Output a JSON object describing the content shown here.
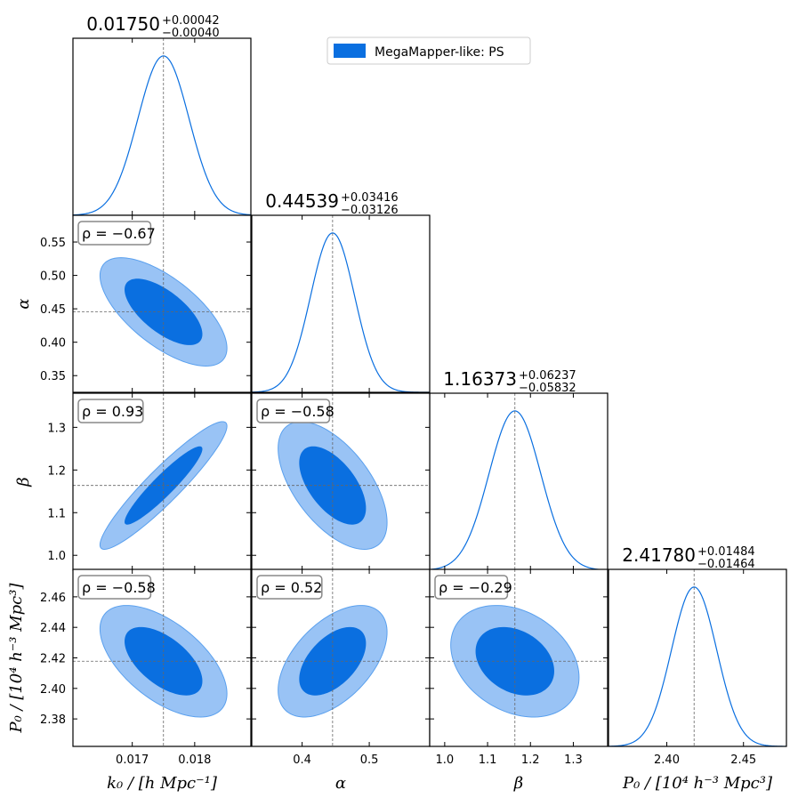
{
  "chart_data": {
    "type": "corner",
    "parameters": [
      {
        "name": "k0",
        "label": "k₀ / [h Mpc⁻¹]",
        "fiducial": 0.0175,
        "range": [
          0.01605,
          0.0189
        ],
        "ticks": [
          0.017,
          0.018
        ],
        "tick_labels": [
          "0.017",
          "0.018"
        ],
        "title_value": "0.01750",
        "title_plus": "+0.00042",
        "title_minus": "−0.00040"
      },
      {
        "name": "alpha",
        "label": "α",
        "fiducial": 0.44539,
        "range": [
          0.325,
          0.59
        ],
        "ticks": [
          0.35,
          0.4,
          0.45,
          0.5,
          0.55
        ],
        "tick_labels": [
          "0.35",
          "0.40",
          "0.45",
          "0.50",
          "0.55"
        ],
        "bottom_ticks": [
          0.4,
          0.5
        ],
        "bottom_tick_labels": [
          "0.4",
          "0.5"
        ],
        "title_value": "0.44539",
        "title_plus": "+0.03416",
        "title_minus": "−0.03126"
      },
      {
        "name": "beta",
        "label": "β",
        "fiducial": 1.16373,
        "range": [
          0.965,
          1.38
        ],
        "ticks": [
          1.0,
          1.1,
          1.2,
          1.3
        ],
        "tick_labels": [
          "1.0",
          "1.1",
          "1.2",
          "1.3"
        ],
        "title_value": "1.16373",
        "title_plus": "+0.06237",
        "title_minus": "−0.05832"
      },
      {
        "name": "P0",
        "label": "P₀ / [10⁴ h⁻³ Mpc³]",
        "fiducial": 2.4178,
        "range": [
          2.362,
          2.478
        ],
        "ticks": [
          2.38,
          2.4,
          2.42,
          2.44,
          2.46
        ],
        "tick_labels": [
          "2.38",
          "2.40",
          "2.42",
          "2.44",
          "2.46"
        ],
        "bottom_ticks": [
          2.4,
          2.45
        ],
        "bottom_tick_labels": [
          "2.40",
          "2.45"
        ],
        "title_value": "2.41780",
        "title_plus": "+0.01484",
        "title_minus": "−0.01464"
      }
    ],
    "correlations": [
      {
        "row": 1,
        "col": 0,
        "rho": -0.67,
        "label": "ρ = −0.67"
      },
      {
        "row": 2,
        "col": 0,
        "rho": 0.93,
        "label": "ρ = 0.93"
      },
      {
        "row": 2,
        "col": 1,
        "rho": -0.58,
        "label": "ρ = −0.58"
      },
      {
        "row": 3,
        "col": 0,
        "rho": -0.58,
        "label": "ρ = −0.58"
      },
      {
        "row": 3,
        "col": 1,
        "rho": 0.52,
        "label": "ρ = 0.52"
      },
      {
        "row": 3,
        "col": 2,
        "rho": -0.29,
        "label": "ρ = −0.29"
      }
    ],
    "legend": {
      "label": "MegaMapper-like: PS",
      "position": "top-center"
    },
    "colors": {
      "line": "#0a6fe0",
      "inner": "#0a6fe0",
      "outer": "#99c3f5",
      "outer_edge": "#5aa0ee",
      "fiducial": "#666666"
    }
  }
}
